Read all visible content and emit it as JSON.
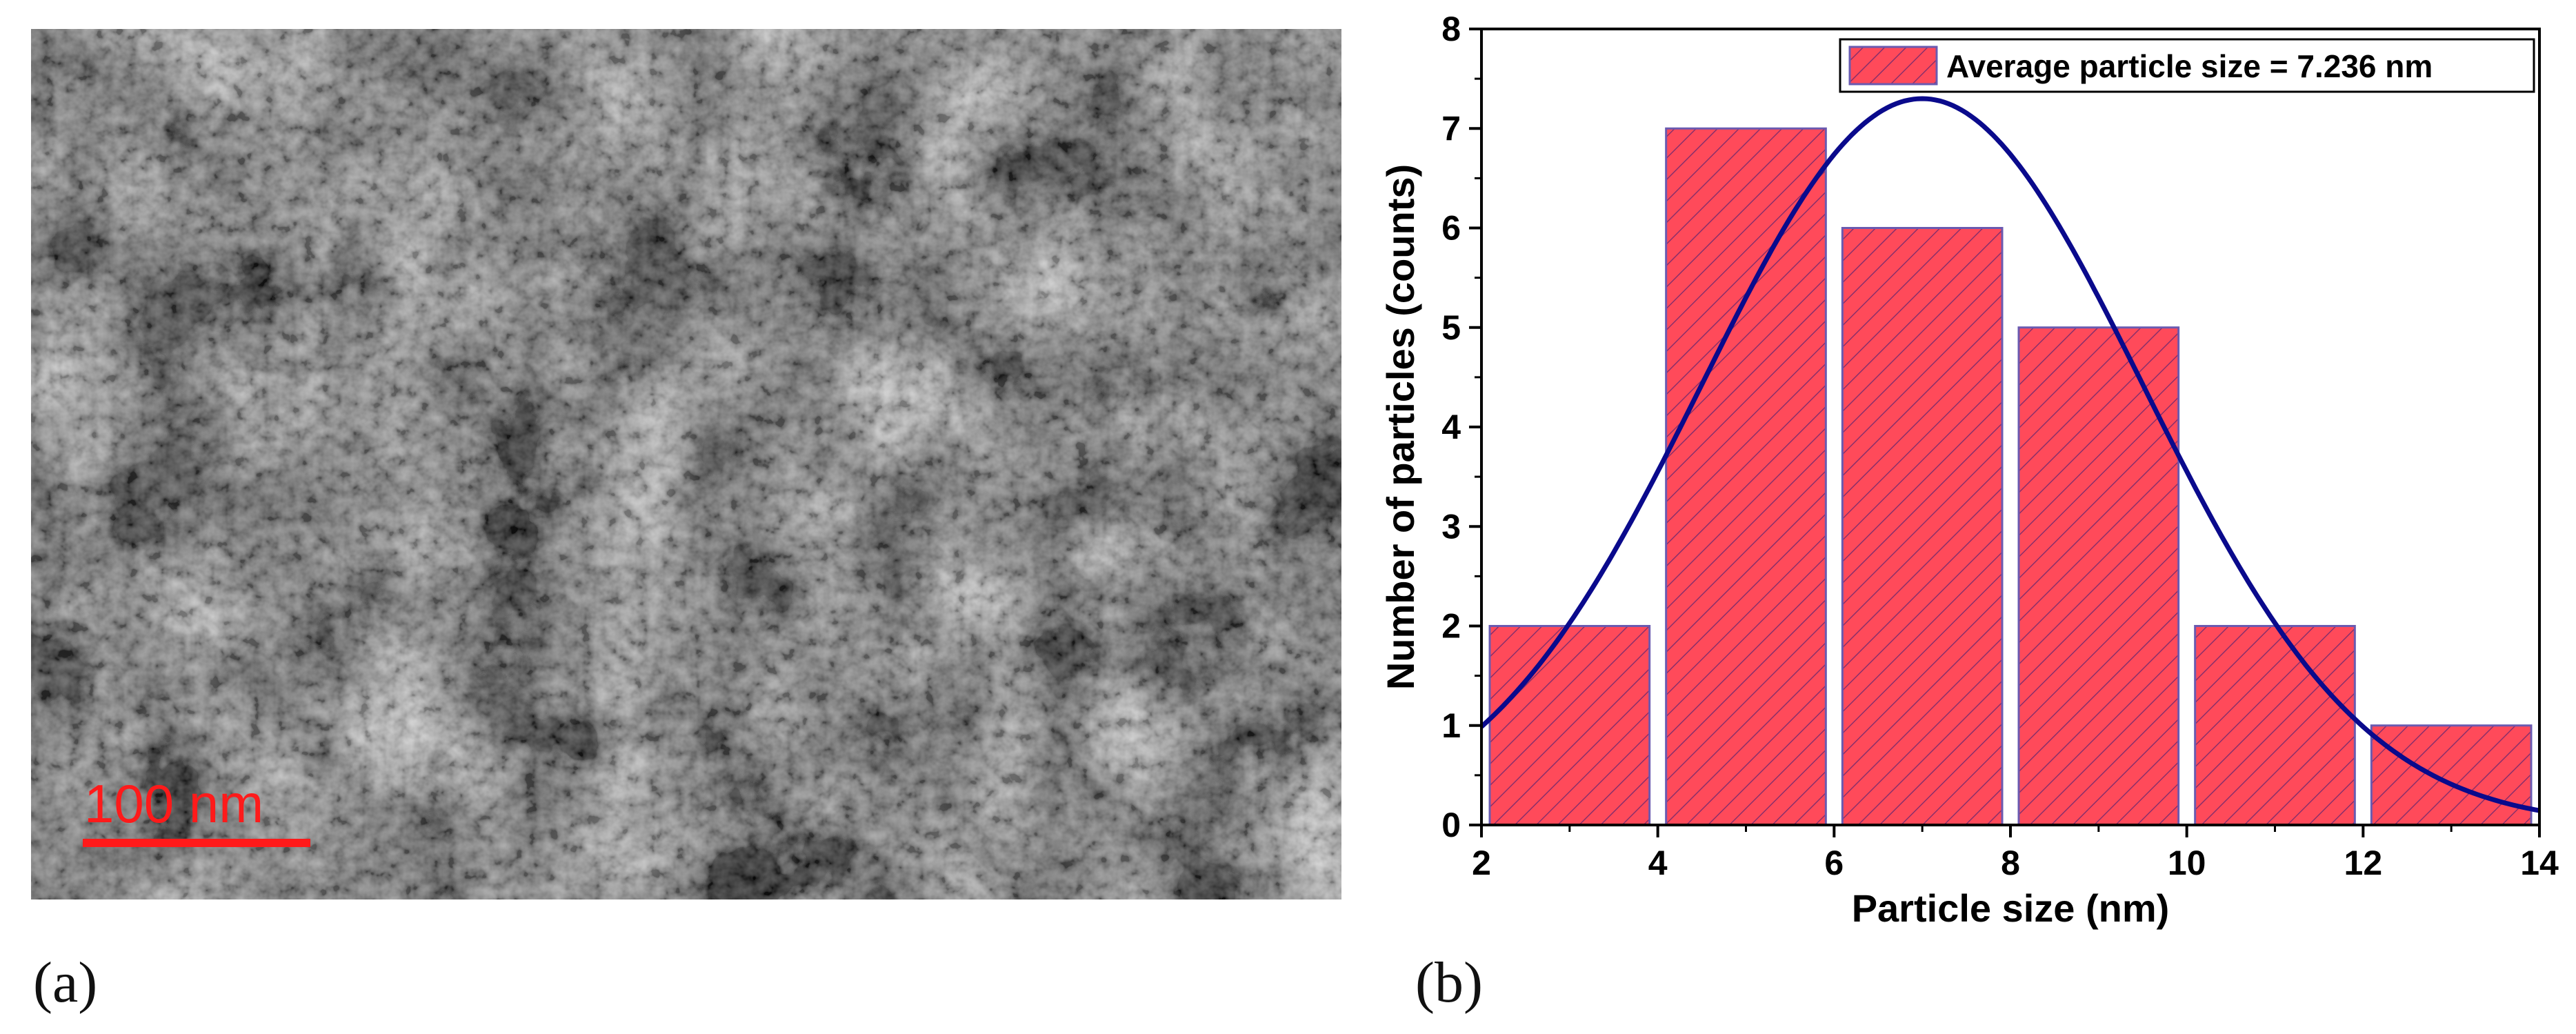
{
  "figure": {
    "panel_a_label": "(a)",
    "panel_b_label": "(b)"
  },
  "tem_image": {
    "scale_bar_label": "100 nm",
    "scale_bar_color": "#ff1a1a"
  },
  "chart_data": {
    "type": "bar",
    "xlabel": "Particle size (nm)",
    "ylabel": "Number of particles (counts)",
    "xlim": [
      2,
      14
    ],
    "ylim": [
      0,
      8
    ],
    "x_ticks": [
      2,
      4,
      6,
      8,
      10,
      12,
      14
    ],
    "y_ticks": [
      0,
      1,
      2,
      3,
      4,
      5,
      6,
      7,
      8
    ],
    "bins": [
      {
        "from": 2,
        "to": 4,
        "count": 2
      },
      {
        "from": 4,
        "to": 6,
        "count": 7
      },
      {
        "from": 6,
        "to": 8,
        "count": 6
      },
      {
        "from": 8,
        "to": 10,
        "count": 5
      },
      {
        "from": 10,
        "to": 12,
        "count": 2
      },
      {
        "from": 12,
        "to": 14,
        "count": 1
      }
    ],
    "fit_curve": {
      "type": "gaussian",
      "peak_x": 7.0,
      "peak_y": 7.3,
      "sigma": 2.5
    },
    "legend": {
      "label": "Average particle size = 7.236 nm",
      "position": "top-right"
    },
    "bar_color": "#ff4a5a",
    "bar_hatch_color": "#8a2f6a",
    "bar_edge_color": "#6a5ab0",
    "curve_color": "#0a0a8c",
    "grid": false
  }
}
